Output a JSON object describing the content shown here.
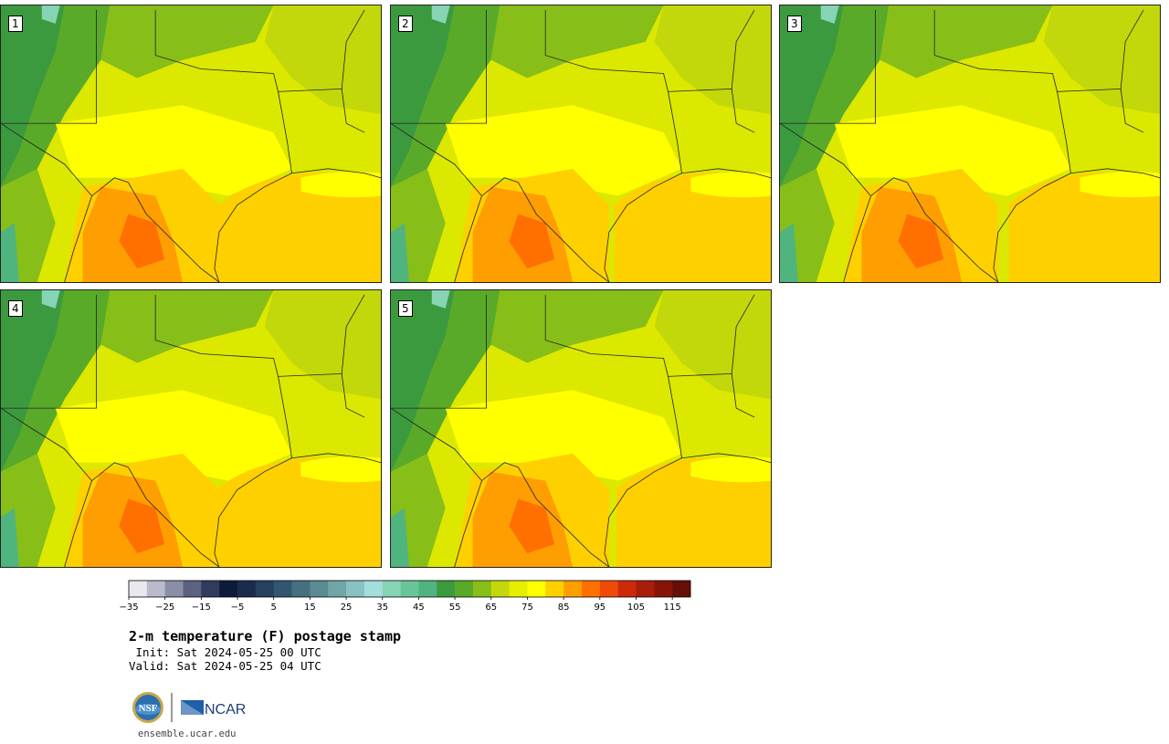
{
  "panels": [
    {
      "label": "1"
    },
    {
      "label": "2"
    },
    {
      "label": "3"
    },
    {
      "label": "4"
    },
    {
      "label": "5"
    }
  ],
  "colorbar": {
    "colors": [
      "#e8e8ee",
      "#b9bbcc",
      "#8a8ea6",
      "#5c6280",
      "#313b5e",
      "#0e1a3a",
      "#1a2b4c",
      "#26405e",
      "#325670",
      "#467080",
      "#5a8a92",
      "#70a6a6",
      "#88c2c2",
      "#a2dedd",
      "#86d3b5",
      "#6ac49a",
      "#50b47e",
      "#3c9a3e",
      "#5aaa2a",
      "#88be18",
      "#c2d80a",
      "#e8ee00",
      "#ffff00",
      "#ffd000",
      "#ff9e00",
      "#ff7000",
      "#f04a08",
      "#cc2a08",
      "#a81e0a",
      "#861508",
      "#641008"
    ],
    "ticks": [
      "−35",
      "−25",
      "−15",
      "−5",
      "5",
      "15",
      "25",
      "35",
      "45",
      "55",
      "65",
      "75",
      "85",
      "95",
      "105",
      "115"
    ]
  },
  "title": "2-m temperature (F) postage stamp",
  "init": " Init: Sat 2024-05-25 00 UTC",
  "valid": "Valid: Sat 2024-05-25 04 UTC",
  "logos": {
    "nsf": "NSF",
    "ncar": "NCAR"
  },
  "footer": "ensemble.ucar.edu"
}
